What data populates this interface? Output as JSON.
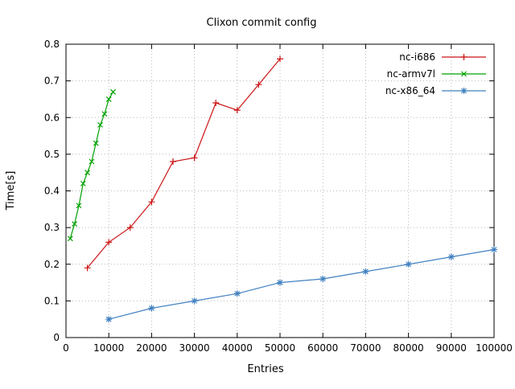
{
  "chart_data": {
    "type": "line",
    "title": "Clixon commit config",
    "xlabel": "Entries",
    "ylabel": "Time[s]",
    "xlim": [
      0,
      100000
    ],
    "ylim": [
      0,
      0.8
    ],
    "x_ticks": [
      0,
      10000,
      20000,
      30000,
      40000,
      50000,
      60000,
      70000,
      80000,
      90000,
      100000
    ],
    "x_tick_labels": [
      "0",
      "10000",
      "20000",
      "30000",
      "40000",
      "50000",
      "60000",
      "70000",
      "80000",
      "90000",
      "100000"
    ],
    "y_ticks": [
      0,
      0.1,
      0.2,
      0.3,
      0.4,
      0.5,
      0.6,
      0.7,
      0.8
    ],
    "y_tick_labels": [
      "0",
      "0.1",
      "0.2",
      "0.3",
      "0.4",
      "0.5",
      "0.6",
      "0.7",
      "0.8"
    ],
    "grid": true,
    "legend_position": "top-right",
    "axis_color": "#000000",
    "grid_color": "#b8b8b8",
    "series": [
      {
        "name": "nc-i686",
        "color": "#cc1414",
        "marker": "plus",
        "points": [
          [
            5000,
            0.19
          ],
          [
            10000,
            0.26
          ],
          [
            15000,
            0.3
          ],
          [
            20000,
            0.37
          ],
          [
            25000,
            0.48
          ],
          [
            30000,
            0.49
          ],
          [
            35000,
            0.64
          ],
          [
            40000,
            0.62
          ],
          [
            45000,
            0.69
          ],
          [
            50000,
            0.76
          ]
        ]
      },
      {
        "name": "nc-armv7l",
        "color": "#00a000",
        "marker": "cross",
        "points": [
          [
            1000,
            0.27
          ],
          [
            2000,
            0.31
          ],
          [
            3000,
            0.36
          ],
          [
            4000,
            0.42
          ],
          [
            5000,
            0.45
          ],
          [
            6000,
            0.48
          ],
          [
            7000,
            0.53
          ],
          [
            8000,
            0.58
          ],
          [
            9000,
            0.61
          ],
          [
            10000,
            0.65
          ],
          [
            11000,
            0.67
          ]
        ]
      },
      {
        "name": "nc-x86_64",
        "color": "#4080c0",
        "marker": "star",
        "points": [
          [
            10000,
            0.05
          ],
          [
            20000,
            0.08
          ],
          [
            30000,
            0.1
          ],
          [
            40000,
            0.12
          ],
          [
            50000,
            0.15
          ],
          [
            60000,
            0.16
          ],
          [
            70000,
            0.18
          ],
          [
            80000,
            0.2
          ],
          [
            90000,
            0.22
          ],
          [
            100000,
            0.24
          ]
        ]
      }
    ]
  }
}
